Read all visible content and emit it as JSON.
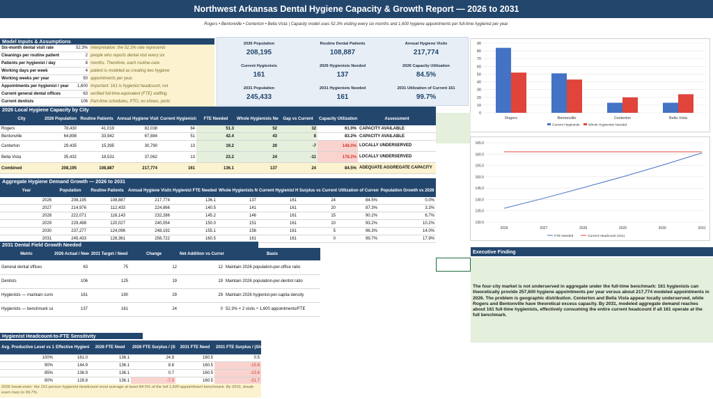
{
  "title": "Northwest Arkansas Dental Hygiene Capacity & Growth Report — 2026 to 2031",
  "subtitle": "Rogers • Bentonville • Centerton • Bella Vista | Capacity model uses 52.3% visiting every six months and 1,600 hygiene appointments per full-time hygienist per year.",
  "inputs": {
    "header": "Model Inputs & Assumptions",
    "rows": [
      {
        "label": "Six-month dental visit rate",
        "value": "52.3%",
        "note": "Interpretation: the 52.3% rate represents"
      },
      {
        "label": "Cleanings per routine patient",
        "value": "2",
        "note": "people who reports dental visit every six"
      },
      {
        "label": "Patients per hygienist / day",
        "value": "8",
        "note": "months. Therefore, each routine-care"
      },
      {
        "label": "Working days per week",
        "value": "4",
        "note": "patient is modeled as creating two hygiene"
      },
      {
        "label": "Working weeks per year",
        "value": "50",
        "note": "appointments per year."
      },
      {
        "label": "Appointments per hygienist / year",
        "value": "1,600",
        "note": "Important: 161 is hygienist headcount, not"
      },
      {
        "label": "Current general dental offices",
        "value": "63",
        "note": "verified full-time-equivalent (FTE) staffing."
      },
      {
        "label": "Current dentists",
        "value": "106",
        "note": "Part-time schedules, PTO, no-shows, perio"
      },
      {
        "label": "Current hygienists",
        "value": "161",
        "note": "visit length, and temp coverage reduce real"
      }
    ]
  },
  "kpis": [
    {
      "label": "2026 Population",
      "value": "208,195"
    },
    {
      "label": "Routine Dental Patients",
      "value": "108,887"
    },
    {
      "label": "Annual Hygiene Visits",
      "value": "217,774"
    },
    {
      "label": "Current Hygienists",
      "value": "161"
    },
    {
      "label": "2026 Hygienists Needed",
      "value": "137"
    },
    {
      "label": "2026 Capacity Utilization",
      "value": "84.5%"
    },
    {
      "label": "2031 Population",
      "value": "245,433"
    },
    {
      "label": "2031 Hygienists Needed",
      "value": "161"
    },
    {
      "label": "2031 Utilization of Current 161",
      "value": "99.7%"
    }
  ],
  "local": {
    "header": "2026 Local Hygiene Capacity by City",
    "columns": [
      "City",
      "2026 Population",
      "Routine Patients",
      "Annual Hygiene Visits",
      "Current Hygienists",
      "FTE Needed",
      "Whole Hygienists Needed",
      "Gap vs Current",
      "Capacity Utilization",
      "Assessment"
    ],
    "rows": [
      [
        "Rogers",
        "78,430",
        "41,019",
        "82,038",
        "84",
        "51.3",
        "52",
        "32",
        "61.0%",
        "CAPACITY AVAILABLE"
      ],
      [
        "Bentonville",
        "64,898",
        "33,942",
        "67,884",
        "51",
        "42.4",
        "43",
        "8",
        "83.2%",
        "CAPACITY AVAILABLE"
      ],
      [
        "Centerton",
        "29,435",
        "15,395",
        "30,790",
        "13",
        "19.2",
        "20",
        "-7",
        "148.0%",
        "LOCALLY UNDERSERVED"
      ],
      [
        "Bella Vista",
        "35,432",
        "18,531",
        "37,062",
        "13",
        "23.2",
        "24",
        "-11",
        "178.2%",
        "LOCALLY UNDERSERVED"
      ],
      [
        "Combined",
        "208,195",
        "108,887",
        "217,774",
        "161",
        "136.1",
        "137",
        "24",
        "84.5%",
        "ADEQUATE AGGREGATE CAPACITY"
      ]
    ]
  },
  "growth": {
    "header": "Aggregate Hygiene Demand Growth — 2026 to 2031",
    "columns": [
      "Year",
      "Population",
      "Routine Patients",
      "Annual Hygiene Visits",
      "Hygienist FTE Needed",
      "Whole Hygienists Needed",
      "Current Hygienist Headcount",
      "Surplus vs Current",
      "Utilization of Current 161",
      "Population Growth vs 2026"
    ],
    "rows": [
      [
        "2026",
        "208,195",
        "108,887",
        "217,774",
        "136.1",
        "137",
        "161",
        "24",
        "84.5%",
        "0.0%"
      ],
      [
        "2027",
        "214,976",
        "112,433",
        "224,866",
        "140.5",
        "141",
        "161",
        "20",
        "87.3%",
        "3.3%"
      ],
      [
        "2028",
        "222,071",
        "116,143",
        "232,286",
        "145.2",
        "146",
        "161",
        "15",
        "90.2%",
        "6.7%"
      ],
      [
        "2029",
        "229,498",
        "120,027",
        "240,054",
        "150.0",
        "151",
        "161",
        "10",
        "93.2%",
        "10.2%"
      ],
      [
        "2030",
        "237,277",
        "124,096",
        "248,192",
        "155.1",
        "156",
        "161",
        "5",
        "96.3%",
        "14.0%"
      ],
      [
        "2031",
        "245,433",
        "128,361",
        "256,722",
        "160.5",
        "161",
        "161",
        "0",
        "99.7%",
        "17.9%"
      ]
    ]
  },
  "field": {
    "header": "2031 Dental Field Growth Needed",
    "columns": [
      "Metric",
      "2026 Actual / Need",
      "2031 Target / Need",
      "Change",
      "Net Addition vs Current Actual",
      "Basis"
    ],
    "rows": [
      [
        "General dental offices",
        "63",
        "75",
        "12",
        "12",
        "Maintain 2026 population-per-office ratio"
      ],
      [
        "Dentists",
        "106",
        "125",
        "19",
        "19",
        "Maintain 2026 population-per-dentist ratio"
      ],
      [
        "Hygienists — maintain current ratio",
        "161",
        "190",
        "29",
        "29",
        "Maintain 2026 hygienist-per-capita density"
      ],
      [
        "Hygienists — benchmark capacity",
        "137",
        "161",
        "24",
        "0",
        "52.3% × 2 visits ÷ 1,600 appointments/FTE"
      ]
    ]
  },
  "sensitivity": {
    "header": "Hygienist Headcount-to-FTE Sensitivity",
    "columns": [
      "Avg. Productive Level vs 1,600 Benchmark",
      "Effective Hygienist FTE",
      "2026 FTE Need",
      "2026 FTE Surplus / (Shortage)",
      "2031 FTE Need",
      "2031 FTE Surplus / (Shortage)"
    ],
    "rows": [
      [
        "100%",
        "161.0",
        "136.1",
        "24.9",
        "160.5",
        "0.5"
      ],
      [
        "90%",
        "144.9",
        "136.1",
        "8.8",
        "160.5",
        "-15.6"
      ],
      [
        "85%",
        "136.9",
        "136.1",
        "0.7",
        "160.5",
        "-23.6"
      ],
      [
        "80%",
        "128.8",
        "136.1",
        "-7.3",
        "160.5",
        "-31.7"
      ]
    ],
    "note": "2026 break-even: the 161-person hygienist headcount must average at least 84.5% of the full 1,600-appointment benchmark. By 2031, break-even rises to 99.7%."
  },
  "executive": {
    "header": "Executive Finding",
    "text": "The four-city market is not underserved in aggregate under the full-time benchmark: 161 hygienists can theoretically provide 257,600 hygiene appointments per year versus about 217,774 modeled appointments in 2026. The problem is geographic distribution. Centerton and Bella Vista appear locally underserved, while Rogers and Bentonville have theoretical excess capacity. By 2031, modeled aggregate demand reaches about 161 full-time hygienists, effectively consuming the entire current headcount if all 161 operate at the full benchmark."
  },
  "chart_data": [
    {
      "type": "bar",
      "categories": [
        "Rogers",
        "Bentonville",
        "Centerton",
        "Bella Vista"
      ],
      "series": [
        {
          "name": "Current Hygienists",
          "values": [
            84,
            51,
            13,
            13
          ],
          "color": "#4472c4"
        },
        {
          "name": "Whole Hygienists Needed",
          "values": [
            52,
            43,
            20,
            24
          ],
          "color": "#e0443a"
        }
      ],
      "ylim": [
        0,
        90
      ],
      "yticks": [
        "0",
        "10",
        "20",
        "30",
        "40",
        "50",
        "60",
        "70",
        "80",
        "90"
      ],
      "grid": true,
      "legend": "bottom"
    },
    {
      "type": "line",
      "x": [
        "2026",
        "2027",
        "2028",
        "2029",
        "2030",
        "2031"
      ],
      "series": [
        {
          "name": "FTE Needed",
          "values": [
            136.1,
            140.5,
            145.2,
            150.0,
            155.1,
            160.5
          ],
          "color": "#4472c4"
        },
        {
          "name": "Current Headcount (161)",
          "values": [
            161,
            161,
            161,
            161,
            161,
            161
          ],
          "color": "#e0443a"
        }
      ],
      "ylim": [
        130,
        165
      ],
      "yticks": [
        "130.0",
        "135.0",
        "140.0",
        "145.0",
        "150.0",
        "155.0",
        "160.0",
        "165.0"
      ],
      "grid": true,
      "legend": "bottom"
    }
  ]
}
